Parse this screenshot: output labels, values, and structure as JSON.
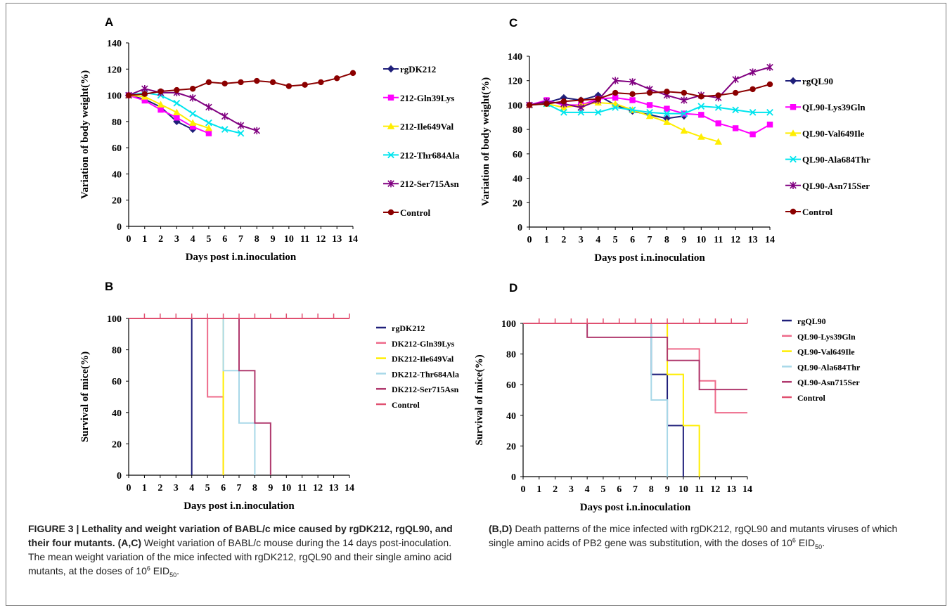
{
  "colors": {
    "navy": "#1f1f7a",
    "magenta": "#ff00ff",
    "yellow": "#ffee00",
    "cyan": "#00e5ee",
    "purple": "#800080",
    "darkred": "#8b0000",
    "pink": "#ee6b8b",
    "lightblue": "#a8d8e8",
    "plum": "#b03a6e",
    "control_red": "#e05070"
  },
  "chart_data": [
    {
      "panel": "A",
      "type": "line",
      "xlabel": "Days post i.n.inoculation",
      "ylabel": "Variation of body weight(%)",
      "x_ticks": [
        "0",
        "1",
        "2",
        "3",
        "4",
        "5",
        "6",
        "7",
        "8",
        "9",
        "10",
        "11",
        "12",
        "13",
        "14"
      ],
      "y_ticks": [
        "0",
        "20",
        "40",
        "60",
        "80",
        "100",
        "120",
        "140"
      ],
      "xlim": [
        0,
        14
      ],
      "ylim": [
        0,
        140
      ],
      "series": [
        {
          "name": "rgDK212",
          "color": "#1f1f7a",
          "marker": "diamond",
          "x": [
            0,
            1,
            2,
            3,
            4
          ],
          "y": [
            100,
            97,
            91,
            80,
            74
          ]
        },
        {
          "name": "212-Gln39Lys",
          "color": "#ff00ff",
          "marker": "square",
          "x": [
            0,
            1,
            2,
            3,
            4,
            5
          ],
          "y": [
            100,
            96,
            89,
            83,
            76,
            71
          ]
        },
        {
          "name": "212-Ile649Val",
          "color": "#ffee00",
          "marker": "triangle",
          "x": [
            0,
            1,
            2,
            3,
            4,
            5
          ],
          "y": [
            100,
            99,
            93,
            87,
            79,
            75
          ]
        },
        {
          "name": "212-Thr684Ala",
          "color": "#00e5ee",
          "marker": "x",
          "x": [
            0,
            1,
            2,
            3,
            4,
            5,
            6,
            7
          ],
          "y": [
            100,
            102,
            100,
            94,
            86,
            79,
            74,
            71
          ]
        },
        {
          "name": "212-Ser715Asn",
          "color": "#800080",
          "marker": "star",
          "x": [
            0,
            1,
            2,
            3,
            4,
            5,
            6,
            7,
            8
          ],
          "y": [
            100,
            105,
            102,
            102,
            98,
            91,
            84,
            77,
            73
          ]
        },
        {
          "name": "Control",
          "color": "#8b0000",
          "marker": "circle",
          "x": [
            0,
            1,
            2,
            3,
            4,
            5,
            6,
            7,
            8,
            9,
            10,
            11,
            12,
            13,
            14
          ],
          "y": [
            100,
            101,
            103,
            104,
            105,
            110,
            109,
            110,
            111,
            110,
            107,
            108,
            110,
            113,
            117
          ]
        }
      ]
    },
    {
      "panel": "B",
      "type": "line",
      "xlabel": "Days post i.n.inoculation",
      "ylabel": "Survival of mice(%)",
      "x_ticks": [
        "0",
        "1",
        "2",
        "3",
        "4",
        "5",
        "6",
        "7",
        "8",
        "9",
        "10",
        "11",
        "12",
        "13",
        "14"
      ],
      "y_ticks": [
        "0",
        "20",
        "40",
        "60",
        "80",
        "100"
      ],
      "xlim": [
        0,
        14
      ],
      "ylim": [
        0,
        100
      ],
      "series": [
        {
          "name": "rgDK212",
          "color": "#1f1f7a",
          "x": [
            0,
            4
          ],
          "y": [
            100,
            0
          ]
        },
        {
          "name": "DK212-Gln39Lys",
          "color": "#ee6b8b",
          "x": [
            0,
            5,
            6
          ],
          "y": [
            100,
            50,
            0
          ]
        },
        {
          "name": "DK212-Ile649Val",
          "color": "#ffee00",
          "x": [
            0,
            6
          ],
          "y": [
            100,
            0
          ]
        },
        {
          "name": "DK212-Thr684Ala",
          "color": "#a8d8e8",
          "x": [
            0,
            6,
            7,
            8
          ],
          "y": [
            100,
            66.7,
            33.3,
            0
          ]
        },
        {
          "name": "DK212-Ser715Asn",
          "color": "#b03a6e",
          "x": [
            0,
            7,
            8,
            9
          ],
          "y": [
            100,
            66.7,
            33.3,
            0
          ]
        },
        {
          "name": "Control",
          "color": "#e05070",
          "x": [
            0,
            14
          ],
          "y": [
            100,
            100
          ]
        }
      ]
    },
    {
      "panel": "C",
      "type": "line",
      "xlabel": "Days post i.n.inoculation",
      "ylabel": "Variation of body weight(%)",
      "x_ticks": [
        "0",
        "1",
        "2",
        "3",
        "4",
        "5",
        "6",
        "7",
        "8",
        "9",
        "10",
        "11",
        "12",
        "13",
        "14"
      ],
      "y_ticks": [
        "0",
        "20",
        "40",
        "60",
        "80",
        "100",
        "120",
        "140"
      ],
      "xlim": [
        0,
        14
      ],
      "ylim": [
        0,
        140
      ],
      "series": [
        {
          "name": "rgQL90",
          "color": "#1f1f7a",
          "marker": "diamond",
          "x": [
            0,
            1,
            2,
            3,
            4,
            5,
            6,
            7,
            8,
            9
          ],
          "y": [
            100,
            102,
            106,
            104,
            108,
            100,
            95,
            92,
            89,
            91
          ]
        },
        {
          "name": "QL90-Lys39Gln",
          "color": "#ff00ff",
          "marker": "square",
          "x": [
            0,
            1,
            2,
            3,
            4,
            5,
            6,
            7,
            8,
            9,
            10,
            11,
            12,
            13,
            14
          ],
          "y": [
            100,
            104,
            100,
            100,
            105,
            106,
            104,
            100,
            97,
            93,
            92,
            85,
            81,
            76,
            84
          ]
        },
        {
          "name": "QL90-Val649Ile",
          "color": "#ffee00",
          "marker": "triangle",
          "x": [
            0,
            1,
            2,
            3,
            4,
            5,
            6,
            7,
            8,
            9,
            10,
            11
          ],
          "y": [
            100,
            101,
            98,
            100,
            102,
            101,
            96,
            91,
            86,
            79,
            74,
            70
          ]
        },
        {
          "name": "QL90-Ala684Thr",
          "color": "#00e5ee",
          "marker": "x",
          "x": [
            0,
            1,
            2,
            3,
            4,
            5,
            6,
            7,
            8,
            9,
            10,
            11,
            12,
            13,
            14
          ],
          "y": [
            100,
            101,
            94,
            94,
            94,
            98,
            96,
            94,
            93,
            93,
            99,
            98,
            96,
            94,
            94
          ]
        },
        {
          "name": "QL90-Asn715Ser",
          "color": "#800080",
          "marker": "star",
          "x": [
            0,
            1,
            2,
            3,
            4,
            5,
            6,
            7,
            8,
            9,
            10,
            11,
            12,
            13,
            14
          ],
          "y": [
            100,
            103,
            101,
            98,
            104,
            120,
            119,
            113,
            108,
            104,
            108,
            106,
            121,
            127,
            131
          ]
        },
        {
          "name": "Control",
          "color": "#8b0000",
          "marker": "circle",
          "x": [
            0,
            1,
            2,
            3,
            4,
            5,
            6,
            7,
            8,
            9,
            10,
            11,
            12,
            13,
            14
          ],
          "y": [
            100,
            101,
            103,
            104,
            105,
            110,
            109,
            110,
            111,
            110,
            107,
            108,
            110,
            113,
            117
          ]
        }
      ]
    },
    {
      "panel": "D",
      "type": "line",
      "xlabel": "Days post i.n.inoculation",
      "ylabel": "Survival of mice(%)",
      "x_ticks": [
        "0",
        "1",
        "2",
        "3",
        "4",
        "5",
        "6",
        "7",
        "8",
        "9",
        "10",
        "11",
        "12",
        "13",
        "14"
      ],
      "y_ticks": [
        "0",
        "20",
        "40",
        "60",
        "80",
        "100"
      ],
      "xlim": [
        0,
        14
      ],
      "ylim": [
        0,
        100
      ],
      "series": [
        {
          "name": "rgQL90",
          "color": "#1f1f7a",
          "x": [
            0,
            8,
            9,
            10
          ],
          "y": [
            100,
            66.7,
            33.3,
            0
          ]
        },
        {
          "name": "QL90-Lys39Gln",
          "color": "#ee6b8b",
          "x": [
            0,
            9,
            11,
            12,
            14
          ],
          "y": [
            100,
            83.3,
            62.5,
            41.7,
            41.7
          ]
        },
        {
          "name": "QL90-Val649Ile",
          "color": "#ffee00",
          "x": [
            0,
            9,
            10,
            11
          ],
          "y": [
            100,
            66.7,
            33.3,
            0
          ]
        },
        {
          "name": "QL90-Ala684Thr",
          "color": "#a8d8e8",
          "x": [
            0,
            8,
            9
          ],
          "y": [
            100,
            50,
            0
          ]
        },
        {
          "name": "QL90-Asn715Ser",
          "color": "#b03a6e",
          "x": [
            0,
            4,
            9,
            11,
            14
          ],
          "y": [
            100,
            90.9,
            75.8,
            56.8,
            56.8
          ]
        },
        {
          "name": "Control",
          "color": "#e05070",
          "x": [
            0,
            14
          ],
          "y": [
            100,
            100
          ]
        }
      ]
    }
  ],
  "caption": {
    "figure_label": "FIGURE 3 | Lethality and weight variation of BABL/c mice caused by rgDK212, rgQL90, and their four mutants.",
    "ac_label": "(A,C)",
    "ac_text_1": "Weight variation of BABL/c mouse during the 14 days post-inoculation. The mean weight variation of the mice infected with rgDK212, rgQL90 and their single amino acid mutants, at the doses of 10",
    "sup_1": "6",
    "eid_1": "EID",
    "sub_1": "50",
    "ac_end": ".",
    "bd_label": "(B,D)",
    "bd_text": "Death patterns of the mice infected with rgDK212, rgQL90 and mutants viruses of which single amino acids of PB2 gene was substitution, with the doses of 10",
    "sup_2": "6",
    "eid_2": "EID",
    "sub_2": "50",
    "bd_end": "."
  }
}
